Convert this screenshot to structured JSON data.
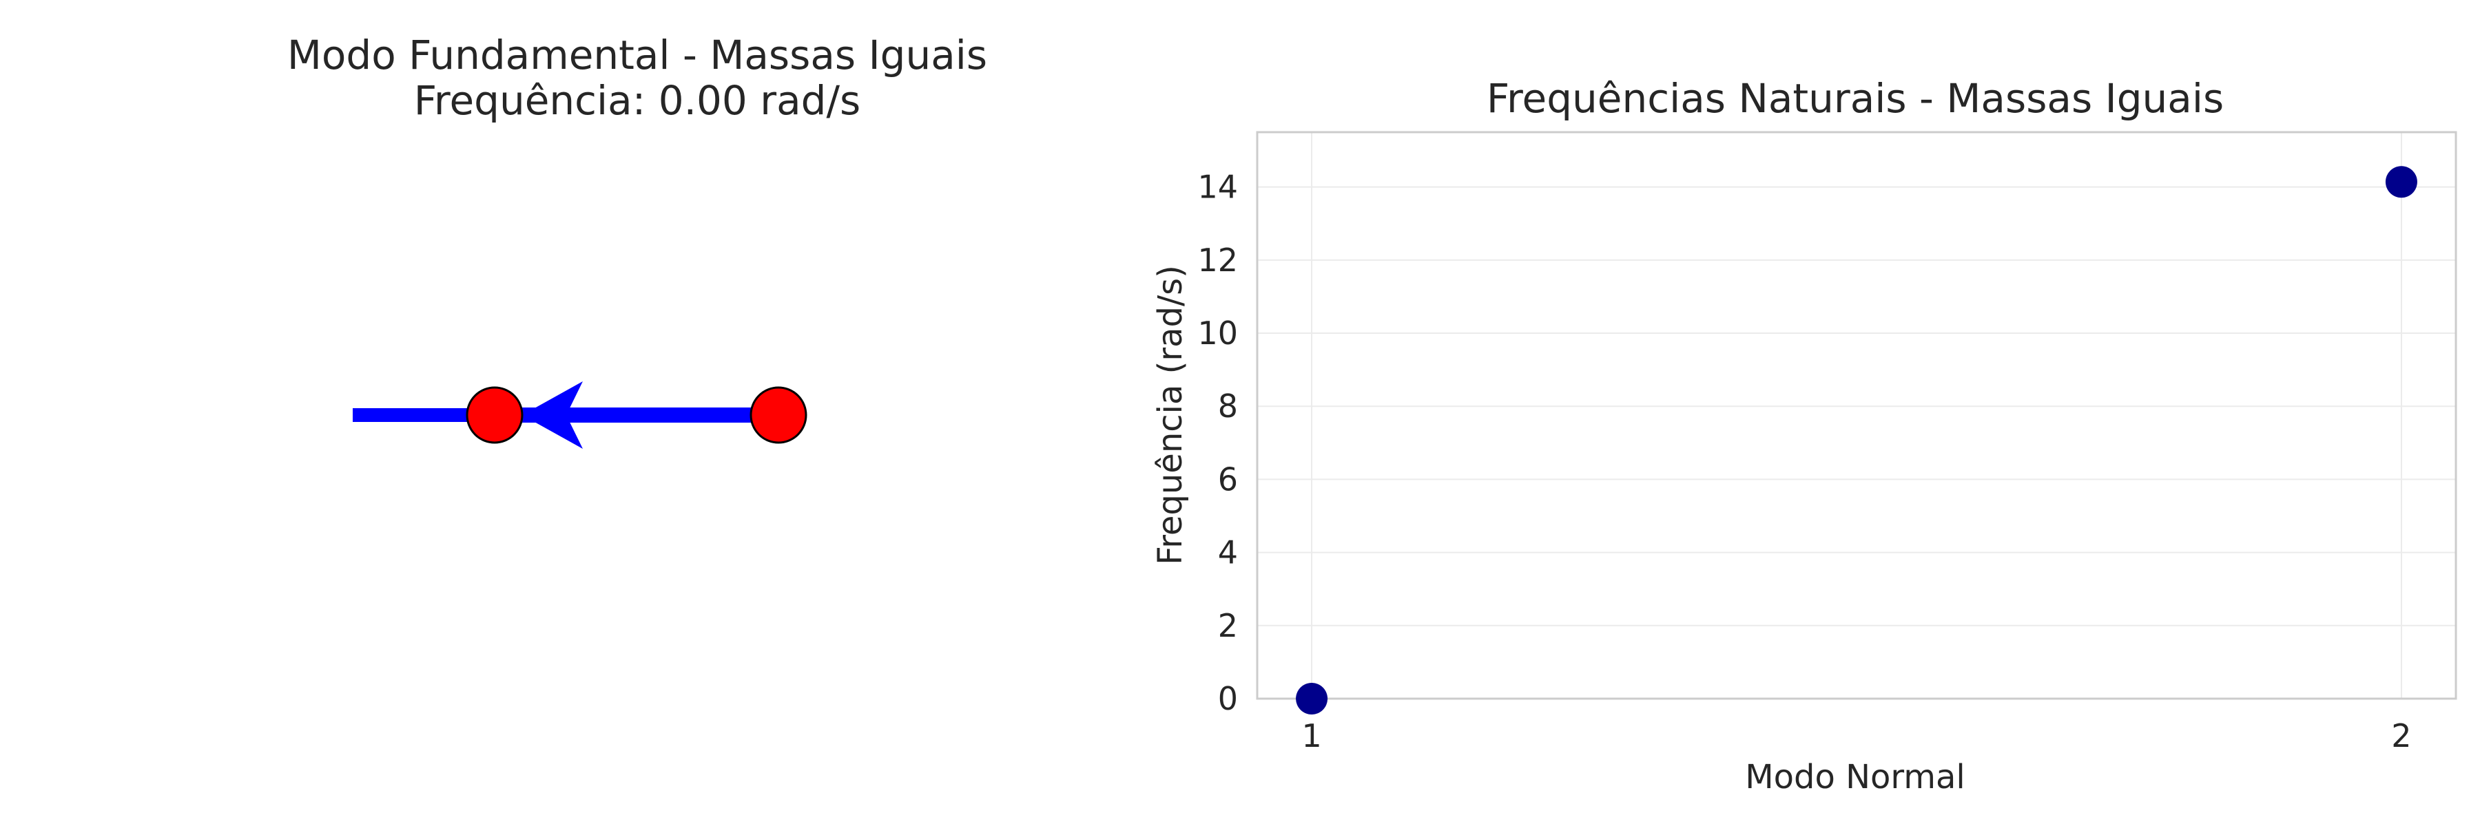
{
  "left_panel": {
    "title_line1": "Modo Fundamental - Massas Iguais",
    "title_line2": "Frequência: 0.00 rad/s",
    "colors": {
      "spring": "#0000ff",
      "arrow": "#0000ff",
      "mass_fill": "#ff0000",
      "mass_edge": "#000000"
    }
  },
  "chart_data": {
    "type": "scatter",
    "title": "Frequências Naturais - Massas Iguais",
    "xlabel": "Modo Normal",
    "ylabel": "Frequência (rad/s)",
    "x": [
      1,
      2
    ],
    "y": [
      0.0,
      14.14
    ],
    "xticks": [
      1,
      2
    ],
    "yticks": [
      0,
      2,
      4,
      6,
      8,
      10,
      12,
      14
    ],
    "xlim": [
      0.95,
      2.05
    ],
    "ylim": [
      0,
      15.5
    ],
    "grid": true,
    "color": "#00008b"
  }
}
